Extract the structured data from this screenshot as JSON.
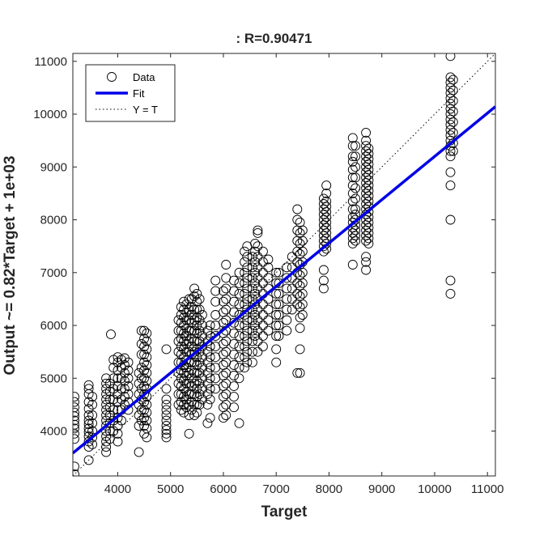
{
  "chart_data": {
    "type": "scatter",
    "title": ": R=0.90471",
    "xlabel": "Target",
    "ylabel": "Output ~= 0.82*Target + 1e+03",
    "xlim": [
      3150,
      11150
    ],
    "ylim": [
      3150,
      11150
    ],
    "xticks": [
      4000,
      5000,
      6000,
      7000,
      8000,
      9000,
      10000,
      11000
    ],
    "yticks": [
      4000,
      5000,
      6000,
      7000,
      8000,
      9000,
      10000,
      11000
    ],
    "grid": false,
    "legend_position": "top-left",
    "fit": {
      "slope": 0.82,
      "intercept": 1000
    },
    "series": [
      {
        "name": "Data",
        "style": "circle",
        "color": "#000000",
        "columns": [
          {
            "x": 3180,
            "y": [
              3180,
              3330,
              3850,
              3950,
              4050,
              4120,
              4200,
              4280,
              4350,
              4450,
              4550,
              4650
            ]
          },
          {
            "x": 3450,
            "y": [
              3450,
              3700,
              3800,
              3900,
              3980,
              4050,
              4130,
              4200,
              4300,
              4420,
              4550,
              4700,
              4800,
              4870
            ]
          },
          {
            "x": 3520,
            "y": [
              3750,
              3880,
              4000,
              4150,
              4300,
              4500,
              4650
            ]
          },
          {
            "x": 3780,
            "y": [
              3600,
              3700,
              3800,
              3900,
              4000,
              4100,
              4200,
              4300,
              4400,
              4500,
              4600,
              4700,
              4800,
              4900,
              5000
            ]
          },
          {
            "x": 3850,
            "y": [
              3850,
              4000,
              4150,
              4300,
              4450,
              4600,
              4750,
              4900
            ]
          },
          {
            "x": 3870,
            "y": [
              5830
            ]
          },
          {
            "x": 3920,
            "y": [
              4000,
              4200,
              4400,
              4600,
              4800,
              5000,
              5200,
              5350
            ]
          },
          {
            "x": 4000,
            "y": [
              3800,
              3950,
              4100,
              4250,
              4400,
              4550,
              4700,
              4850,
              5000,
              5150,
              5300,
              5400
            ]
          },
          {
            "x": 4070,
            "y": [
              4200,
              4400,
              4600,
              4800,
              5000,
              5200,
              5350
            ]
          },
          {
            "x": 4130,
            "y": [
              4500,
              4650,
              4800,
              4950,
              5100,
              5250,
              5380
            ]
          },
          {
            "x": 4200,
            "y": [
              4400,
              4550,
              4700,
              4850,
              5000,
              5150,
              5300
            ]
          },
          {
            "x": 4400,
            "y": [
              3600,
              4100,
              4300,
              4500,
              4700,
              4900,
              5100
            ]
          },
          {
            "x": 4450,
            "y": [
              4200,
              4400,
              4600,
              4800,
              5000,
              5200,
              5450,
              5650,
              5900
            ]
          },
          {
            "x": 4500,
            "y": [
              3950,
              4100,
              4250,
              4400,
              4550,
              4700,
              4850,
              5000,
              5150,
              5300,
              5450,
              5600,
              5750,
              5900
            ]
          },
          {
            "x": 4550,
            "y": [
              3880,
              4050,
              4200,
              4350,
              4500,
              4650,
              4800,
              4950,
              5100,
              5250,
              5400,
              5550,
              5700,
              5850
            ]
          },
          {
            "x": 4920,
            "y": [
              3880,
              3950,
              4020,
              4100,
              4200,
              4300,
              4400,
              4500,
              4600,
              4800,
              5550
            ]
          },
          {
            "x": 5150,
            "y": [
              4500,
              4700,
              4900,
              5100,
              5300,
              5500,
              5700,
              5900,
              6100
            ]
          },
          {
            "x": 5200,
            "y": [
              4400,
              4550,
              4700,
              4850,
              5000,
              5150,
              5300,
              5450,
              5600,
              5750,
              5900,
              6050,
              6200,
              6350
            ]
          },
          {
            "x": 5250,
            "y": [
              4350,
              4500,
              4650,
              4800,
              4950,
              5100,
              5250,
              5400,
              5550,
              5700,
              5850,
              6000,
              6150,
              6300,
              6450
            ]
          },
          {
            "x": 5300,
            "y": [
              4450,
              4600,
              4750,
              4900,
              5050,
              5200,
              5350,
              5500,
              5650,
              5800,
              5950,
              6100,
              6250,
              6400
            ]
          },
          {
            "x": 5350,
            "y": [
              3950,
              4300,
              4500,
              4700,
              4900,
              5100,
              5300,
              5500,
              5700,
              5900,
              6100,
              6300,
              6500
            ]
          },
          {
            "x": 5400,
            "y": [
              4400,
              4550,
              4700,
              4850,
              5000,
              5150,
              5300,
              5450,
              5600,
              5750,
              5900,
              6050,
              6200,
              6350,
              6500
            ]
          },
          {
            "x": 5450,
            "y": [
              4300,
              4500,
              4700,
              4900,
              5100,
              5300,
              5500,
              5700,
              5900,
              6100,
              6300,
              6550,
              6700
            ]
          },
          {
            "x": 5500,
            "y": [
              4350,
              4500,
              4650,
              4800,
              4950,
              5100,
              5250,
              5400,
              5550,
              5700,
              5850,
              6000,
              6150,
              6300,
              6450,
              6600
            ]
          },
          {
            "x": 5550,
            "y": [
              4500,
              4700,
              4900,
              5100,
              5300,
              5500,
              5700,
              5900,
              6100,
              6300,
              6500
            ]
          },
          {
            "x": 5600,
            "y": [
              4600,
              4800,
              5000,
              5200,
              5400,
              5600,
              5800,
              6000,
              6200
            ]
          },
          {
            "x": 5700,
            "y": [
              4150,
              4500,
              4700,
              4900,
              5100,
              5300,
              5500,
              5700,
              5900
            ]
          },
          {
            "x": 5750,
            "y": [
              4250,
              4600,
              4800,
              5000,
              5200,
              5400,
              5600,
              5800,
              6000
            ]
          },
          {
            "x": 5850,
            "y": [
              4800,
              5000,
              5200,
              5400,
              5600,
              5800,
              6000,
              6200,
              6450,
              6650,
              6850
            ]
          },
          {
            "x": 6000,
            "y": [
              4250,
              4450,
              4650,
              4850,
              5050,
              5250,
              5450,
              5650,
              5850,
              6050,
              6250,
              6450,
              6650
            ]
          },
          {
            "x": 6050,
            "y": [
              4300,
              4500,
              4700,
              4900,
              5100,
              5300,
              5500,
              5700,
              5900,
              6100,
              6300,
              6500,
              6700,
              6900,
              7150
            ]
          },
          {
            "x": 6200,
            "y": [
              4450,
              4650,
              4850,
              5050,
              5250,
              5450,
              5650,
              5850,
              6050,
              6250,
              6450,
              6650,
              6850
            ]
          },
          {
            "x": 6300,
            "y": [
              4150,
              5000,
              5200,
              5400,
              5600,
              5800,
              6000,
              6200,
              6400,
              6600,
              6800,
              7000
            ]
          },
          {
            "x": 6400,
            "y": [
              5200,
              5400,
              5600,
              5800,
              6000,
              6200,
              6400,
              6600,
              6800,
              7000,
              7200,
              7400
            ]
          },
          {
            "x": 6450,
            "y": [
              5300,
              5500,
              5700,
              5900,
              6100,
              6300,
              6500,
              6700,
              6900,
              7100,
              7300,
              7500
            ]
          },
          {
            "x": 6550,
            "y": [
              5300,
              5500,
              5700,
              5900,
              6100,
              6300,
              6500,
              6700,
              6900,
              7100,
              7300
            ]
          },
          {
            "x": 6600,
            "y": [
              5800,
              6000,
              6200,
              6400,
              6600,
              6800,
              7000,
              7200,
              7400,
              7550
            ]
          },
          {
            "x": 6650,
            "y": [
              5500,
              5700,
              5900,
              6100,
              6300,
              6500,
              6700,
              6900,
              7100,
              7300,
              7500,
              7750,
              7800
            ]
          },
          {
            "x": 6750,
            "y": [
              5600,
              5800,
              6000,
              6200,
              6400,
              6600,
              6800,
              7000,
              7200,
              7400
            ]
          },
          {
            "x": 6850,
            "y": [
              5900,
              6100,
              6300,
              6500,
              6700,
              6900,
              7100,
              7250
            ]
          },
          {
            "x": 7000,
            "y": [
              5300,
              5550,
              5800,
              6000,
              6200,
              6400,
              6600,
              6800,
              7000
            ]
          },
          {
            "x": 7050,
            "y": [
              5800,
              6000,
              6200,
              6400,
              6600,
              6800,
              7000
            ]
          },
          {
            "x": 7200,
            "y": [
              5900,
              6100,
              6300,
              6500,
              6700,
              6900,
              7100
            ]
          },
          {
            "x": 7300,
            "y": [
              6300,
              6500,
              6700,
              6900,
              7100,
              7300
            ]
          },
          {
            "x": 7400,
            "y": [
              5100,
              6400,
              6600,
              6800,
              7000,
              7200,
              7400,
              7600,
              7800,
              8000,
              8200
            ]
          },
          {
            "x": 7450,
            "y": [
              5100,
              5550,
              5950,
              6150,
              6350,
              6550,
              6750,
              6950,
              7150,
              7350,
              7550,
              7750,
              7950
            ]
          },
          {
            "x": 7500,
            "y": [
              6200,
              6400,
              6600,
              6800,
              7000,
              7200,
              7400,
              7600,
              7800
            ]
          },
          {
            "x": 7900,
            "y": [
              6700,
              6850,
              7050,
              7400,
              7500,
              7600,
              7700,
              7800,
              7900,
              8000,
              8100,
              8200,
              8300,
              8400
            ]
          },
          {
            "x": 7950,
            "y": [
              7450,
              7550,
              7650,
              7750,
              7850,
              7950,
              8050,
              8150,
              8250,
              8350,
              8500,
              8650
            ]
          },
          {
            "x": 8450,
            "y": [
              7150,
              7550,
              7650,
              7750,
              7850,
              7950,
              8050,
              8200,
              8350,
              8500,
              8650,
              8800,
              8950,
              9100,
              9200,
              9400,
              9550
            ]
          },
          {
            "x": 8500,
            "y": [
              7600,
              7700,
              7800,
              7900,
              8000,
              8100,
              8200,
              8400,
              8600,
              8800,
              9000,
              9200,
              9400
            ]
          },
          {
            "x": 8700,
            "y": [
              7050,
              7200,
              7300,
              7600,
              7700,
              7800,
              7900,
              8000,
              8100,
              8200,
              8300,
              8400,
              8500,
              8600,
              8700,
              8800,
              8900,
              9000,
              9100,
              9200,
              9300,
              9400,
              9500,
              9650
            ]
          },
          {
            "x": 8750,
            "y": [
              7550,
              7650,
              7750,
              7850,
              7950,
              8050,
              8150,
              8250,
              8350,
              8450,
              8550,
              8650,
              8750,
              8850,
              8950,
              9050,
              9150,
              9250,
              9350
            ]
          },
          {
            "x": 10300,
            "y": [
              6600,
              6850,
              8000,
              8650,
              8900,
              9200,
              9300,
              9400,
              9500,
              9600,
              9700,
              9800,
              9900,
              10000,
              10100,
              10200,
              10300,
              10400,
              10500,
              10600,
              10700,
              11100
            ]
          },
          {
            "x": 10350,
            "y": [
              9300,
              9450,
              9650,
              9850,
              10050,
              10250,
              10450,
              10650
            ]
          }
        ]
      },
      {
        "name": "Fit",
        "style": "line",
        "color": "#0000e6"
      },
      {
        "name": "Y = T",
        "style": "dotted",
        "color": "#000000"
      }
    ]
  }
}
